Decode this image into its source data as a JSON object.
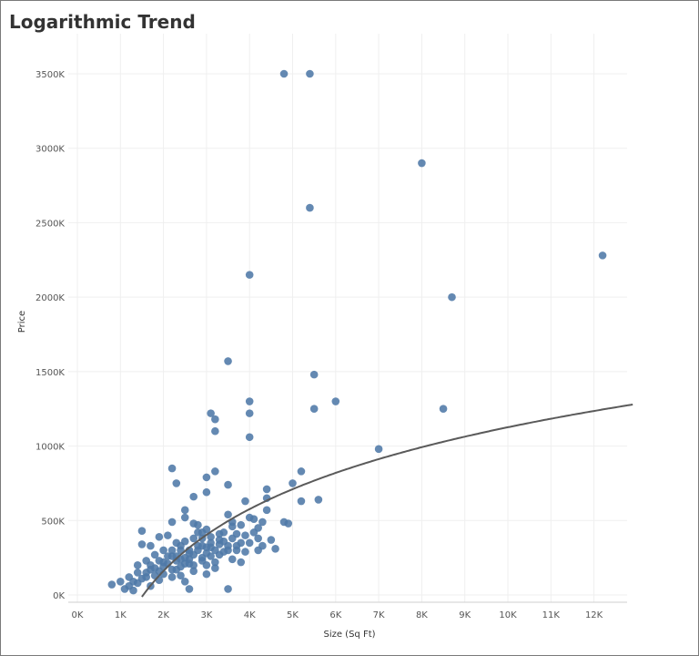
{
  "title": "Logarithmic Trend",
  "colors": {
    "point": "#4e79a7",
    "trend": "#5a5a5a",
    "grid": "#efefef",
    "axis": "#cfcfcf"
  },
  "chart_data": {
    "type": "scatter",
    "title": "Logarithmic Trend",
    "xlabel": "Size (Sq Ft)",
    "ylabel": "Price",
    "xlim": [
      0,
      13000
    ],
    "ylim": [
      0,
      3600000
    ],
    "xticks": [
      {
        "value": 0,
        "label": "0K"
      },
      {
        "value": 1000,
        "label": "1K"
      },
      {
        "value": 2000,
        "label": "2K"
      },
      {
        "value": 3000,
        "label": "3K"
      },
      {
        "value": 4000,
        "label": "4K"
      },
      {
        "value": 5000,
        "label": "5K"
      },
      {
        "value": 6000,
        "label": "6K"
      },
      {
        "value": 7000,
        "label": "7K"
      },
      {
        "value": 8000,
        "label": "8K"
      },
      {
        "value": 9000,
        "label": "9K"
      },
      {
        "value": 10000,
        "label": "10K"
      },
      {
        "value": 11000,
        "label": "11K"
      },
      {
        "value": 12000,
        "label": "12K"
      }
    ],
    "yticks": [
      {
        "value": 0,
        "label": "0K"
      },
      {
        "value": 500000,
        "label": "500K"
      },
      {
        "value": 1000000,
        "label": "1000K"
      },
      {
        "value": 1500000,
        "label": "1500K"
      },
      {
        "value": 2000000,
        "label": "2000K"
      },
      {
        "value": 2500000,
        "label": "2500K"
      },
      {
        "value": 3000000,
        "label": "3000K"
      },
      {
        "value": 3500000,
        "label": "3500K"
      }
    ],
    "trend": {
      "type": "logarithmic",
      "a": -4400000,
      "b": 600000
    },
    "points": [
      [
        4800,
        3500000
      ],
      [
        5400,
        3500000
      ],
      [
        8000,
        2900000
      ],
      [
        5400,
        2600000
      ],
      [
        12200,
        2280000
      ],
      [
        4000,
        2150000
      ],
      [
        8700,
        2000000
      ],
      [
        3500,
        1570000
      ],
      [
        5500,
        1480000
      ],
      [
        4000,
        1300000
      ],
      [
        6000,
        1300000
      ],
      [
        8500,
        1250000
      ],
      [
        5500,
        1250000
      ],
      [
        3100,
        1220000
      ],
      [
        4000,
        1220000
      ],
      [
        3200,
        1180000
      ],
      [
        3200,
        1100000
      ],
      [
        4000,
        1060000
      ],
      [
        7000,
        980000
      ],
      [
        2200,
        850000
      ],
      [
        3200,
        830000
      ],
      [
        5200,
        830000
      ],
      [
        3000,
        790000
      ],
      [
        2300,
        750000
      ],
      [
        3500,
        740000
      ],
      [
        5000,
        750000
      ],
      [
        4400,
        710000
      ],
      [
        3000,
        690000
      ],
      [
        2700,
        660000
      ],
      [
        4400,
        650000
      ],
      [
        3900,
        630000
      ],
      [
        5200,
        630000
      ],
      [
        5600,
        640000
      ],
      [
        2500,
        570000
      ],
      [
        4400,
        570000
      ],
      [
        3500,
        540000
      ],
      [
        2500,
        520000
      ],
      [
        4000,
        520000
      ],
      [
        4100,
        510000
      ],
      [
        2200,
        490000
      ],
      [
        2700,
        480000
      ],
      [
        2800,
        470000
      ],
      [
        3600,
        490000
      ],
      [
        4800,
        490000
      ],
      [
        4900,
        480000
      ],
      [
        1500,
        430000
      ],
      [
        3000,
        440000
      ],
      [
        4200,
        450000
      ],
      [
        3700,
        410000
      ],
      [
        2100,
        400000
      ],
      [
        1900,
        390000
      ],
      [
        2900,
        380000
      ],
      [
        3400,
        360000
      ],
      [
        4500,
        370000
      ],
      [
        1700,
        330000
      ],
      [
        2400,
        330000
      ],
      [
        3100,
        320000
      ],
      [
        4300,
        330000
      ],
      [
        1500,
        340000
      ],
      [
        2000,
        300000
      ],
      [
        2600,
        280000
      ],
      [
        3300,
        270000
      ],
      [
        3900,
        290000
      ],
      [
        4600,
        310000
      ],
      [
        1800,
        270000
      ],
      [
        2200,
        260000
      ],
      [
        2900,
        250000
      ],
      [
        3600,
        240000
      ],
      [
        1600,
        230000
      ],
      [
        2000,
        220000
      ],
      [
        2500,
        210000
      ],
      [
        3000,
        200000
      ],
      [
        3800,
        220000
      ],
      [
        1400,
        200000
      ],
      [
        1800,
        180000
      ],
      [
        2300,
        170000
      ],
      [
        2700,
        160000
      ],
      [
        3200,
        180000
      ],
      [
        1600,
        150000
      ],
      [
        2000,
        140000
      ],
      [
        2400,
        130000
      ],
      [
        3000,
        140000
      ],
      [
        1200,
        120000
      ],
      [
        1500,
        110000
      ],
      [
        1900,
        100000
      ],
      [
        2200,
        120000
      ],
      [
        1000,
        90000
      ],
      [
        1400,
        80000
      ],
      [
        1700,
        60000
      ],
      [
        2500,
        90000
      ],
      [
        800,
        70000
      ],
      [
        1100,
        40000
      ],
      [
        1300,
        30000
      ],
      [
        2600,
        40000
      ],
      [
        3500,
        40000
      ],
      [
        1700,
        170000
      ],
      [
        1900,
        230000
      ],
      [
        2100,
        210000
      ],
      [
        2300,
        260000
      ],
      [
        2400,
        300000
      ],
      [
        2600,
        240000
      ],
      [
        2800,
        300000
      ],
      [
        3000,
        320000
      ],
      [
        3200,
        300000
      ],
      [
        3400,
        290000
      ],
      [
        3500,
        330000
      ],
      [
        3700,
        330000
      ],
      [
        3800,
        350000
      ],
      [
        3300,
        410000
      ],
      [
        2900,
        420000
      ],
      [
        3100,
        390000
      ],
      [
        2700,
        380000
      ],
      [
        2500,
        360000
      ],
      [
        2300,
        350000
      ],
      [
        3800,
        470000
      ],
      [
        4100,
        420000
      ],
      [
        4200,
        380000
      ],
      [
        2600,
        300000
      ],
      [
        2800,
        330000
      ],
      [
        3000,
        280000
      ],
      [
        2400,
        190000
      ],
      [
        2200,
        170000
      ],
      [
        1900,
        160000
      ],
      [
        2700,
        200000
      ],
      [
        2900,
        230000
      ],
      [
        3100,
        260000
      ],
      [
        3300,
        340000
      ],
      [
        3600,
        380000
      ],
      [
        3900,
        400000
      ],
      [
        4000,
        350000
      ],
      [
        3500,
        300000
      ],
      [
        2000,
        190000
      ],
      [
        1600,
        120000
      ],
      [
        1300,
        90000
      ],
      [
        2100,
        260000
      ],
      [
        2300,
        230000
      ],
      [
        2500,
        250000
      ],
      [
        2700,
        270000
      ],
      [
        2900,
        330000
      ],
      [
        3100,
        350000
      ],
      [
        3300,
        370000
      ],
      [
        3400,
        420000
      ],
      [
        3700,
        300000
      ],
      [
        4200,
        300000
      ],
      [
        3200,
        220000
      ],
      [
        2600,
        210000
      ],
      [
        2400,
        240000
      ],
      [
        1800,
        130000
      ],
      [
        1200,
        60000
      ],
      [
        1400,
        150000
      ],
      [
        2800,
        420000
      ],
      [
        3600,
        460000
      ],
      [
        4300,
        490000
      ],
      [
        2200,
        300000
      ],
      [
        1700,
        200000
      ]
    ]
  }
}
